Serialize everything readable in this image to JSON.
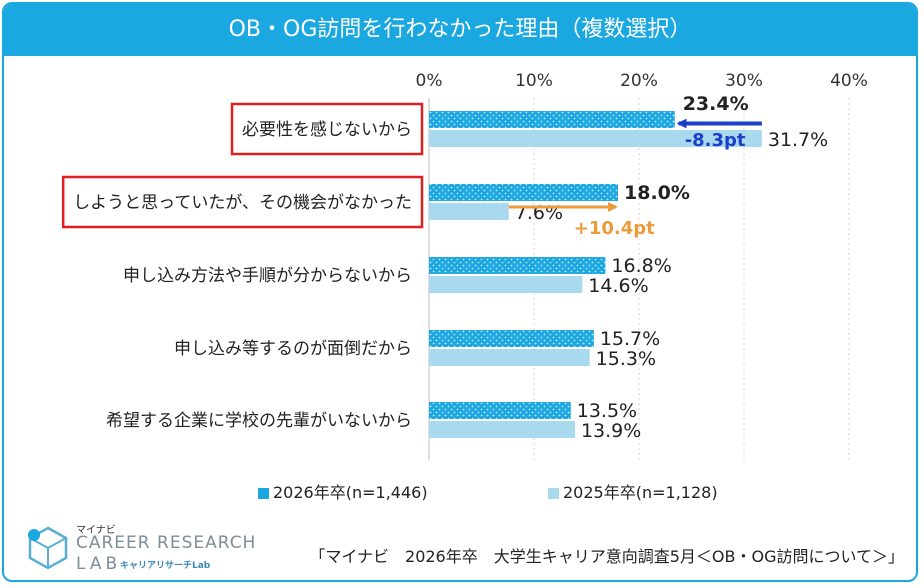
{
  "title": "OB・OG訪問を行わなかった理由（複数選択）",
  "chart_data": {
    "type": "bar",
    "orientation": "horizontal",
    "title": "OB・OG訪問を行わなかった理由（複数選択）",
    "xlim": [
      0,
      40
    ],
    "ticks": [
      0,
      10,
      20,
      30,
      40
    ],
    "tick_labels": [
      "0%",
      "10%",
      "20%",
      "30%",
      "40%"
    ],
    "categories": [
      "必要性を感じないから",
      "しようと思っていたが、その機会がなかった",
      "申し込み方法や手順が分からないから",
      "申し込み等するのが面倒だから",
      "希望する企業に学校の先輩がいないから"
    ],
    "highlighted": [
      true,
      true,
      false,
      false,
      false
    ],
    "series": [
      {
        "name": "2026年卒(n=1,446)",
        "values": [
          23.4,
          18.0,
          16.8,
          15.7,
          13.5
        ],
        "labels": [
          "23.4%",
          "18.0%",
          "16.8%",
          "15.7%",
          "13.5%"
        ],
        "color": "#1ba7e0",
        "pattern": "dotted"
      },
      {
        "name": "2025年卒(n=1,128)",
        "values": [
          31.7,
          7.6,
          14.6,
          15.3,
          13.9
        ],
        "labels": [
          "31.7%",
          "7.6%",
          "14.6%",
          "15.3%",
          "13.9%"
        ],
        "color": "#a9d9ee",
        "pattern": "solid"
      }
    ],
    "annotations": [
      {
        "category_index": 0,
        "text": "-8.3pt",
        "direction": "decrease",
        "color": "#1a3fc8"
      },
      {
        "category_index": 1,
        "text": "+10.4pt",
        "direction": "increase",
        "color": "#ec9b3b"
      }
    ],
    "legend_position": "bottom"
  },
  "legend": [
    {
      "label": "2026年卒(n=1,446)",
      "color": "#1ba7e0"
    },
    {
      "label": "2025年卒(n=1,128)",
      "color": "#a9d9ee"
    }
  ],
  "logo": {
    "small": "マイナビ",
    "main": "CAREER RESEARCH",
    "lab": "LAB",
    "sub": "キャリアリサーチLab"
  },
  "source": "「マイナビ　2026年卒　大学生キャリア意向調査5月＜OB・OG訪問について＞」"
}
